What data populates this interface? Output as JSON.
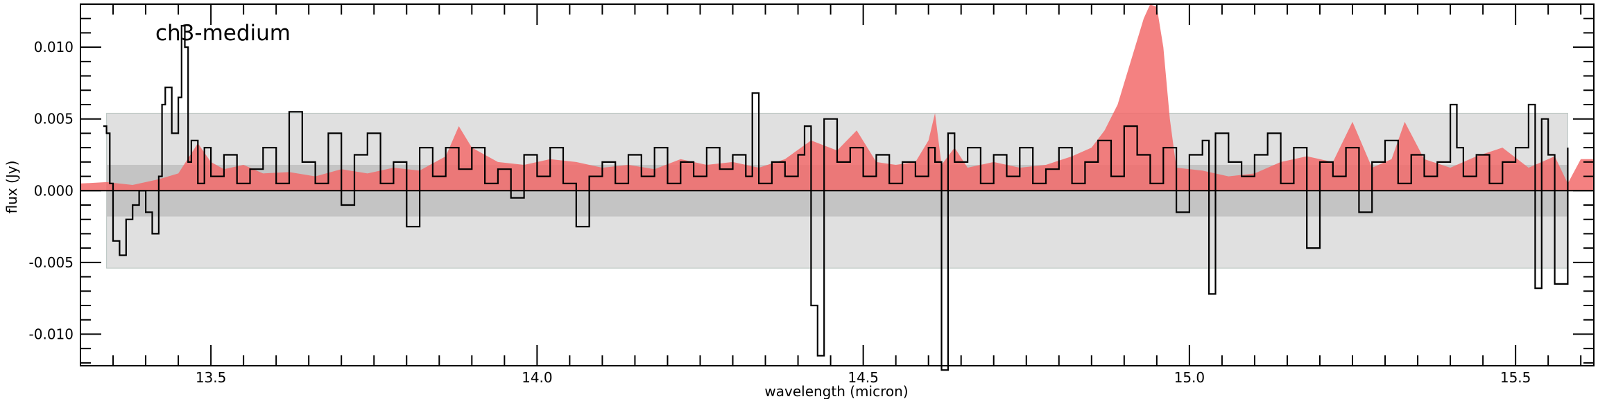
{
  "chart_data": {
    "type": "line",
    "title": "",
    "annotation": "ch3-medium",
    "xlabel": "wavelength (micron)",
    "ylabel": "flux (Jy)",
    "xlim": [
      13.3,
      15.62
    ],
    "ylim": [
      -0.0122,
      0.013
    ],
    "x_ticks": [
      13.5,
      14.0,
      14.5,
      15.0,
      15.5
    ],
    "x_tick_labels": [
      "13.5",
      "14.0",
      "14.5",
      "15.0",
      "15.5"
    ],
    "y_ticks": [
      -0.01,
      -0.005,
      0.0,
      0.005,
      0.01
    ],
    "y_tick_labels": [
      "-0.010",
      "-0.005",
      "0.000",
      "0.005",
      "0.010"
    ],
    "noise_bands": {
      "x_range": [
        13.34,
        15.58
      ],
      "outer_sigma": 0.0054,
      "inner_sigma": 0.0018
    },
    "colors": {
      "band_outer": "#e0e0e0",
      "band_inner": "#c4c4c4",
      "model_fill": "#f26b6b",
      "spectrum": "#000000",
      "zero_line": "#000000"
    },
    "series": [
      {
        "style": "filled-area",
        "x": [
          13.3,
          13.34,
          13.38,
          13.42,
          13.45,
          13.48,
          13.5,
          13.52,
          13.55,
          13.58,
          13.62,
          13.66,
          13.7,
          13.74,
          13.78,
          13.82,
          13.86,
          13.88,
          13.9,
          13.94,
          13.98,
          14.02,
          14.06,
          14.1,
          14.14,
          14.18,
          14.22,
          14.26,
          14.3,
          14.34,
          14.38,
          14.42,
          14.46,
          14.49,
          14.52,
          14.55,
          14.58,
          14.6,
          14.61,
          14.62,
          14.64,
          14.66,
          14.7,
          14.74,
          14.78,
          14.82,
          14.85,
          14.87,
          14.89,
          14.91,
          14.93,
          14.94,
          14.95,
          14.96,
          14.97,
          14.98,
          15.02,
          15.06,
          15.1,
          15.14,
          15.18,
          15.22,
          15.25,
          15.28,
          15.31,
          15.33,
          15.36,
          15.4,
          15.44,
          15.48,
          15.52,
          15.56,
          15.58,
          15.6,
          15.62
        ],
        "y": [
          0.0005,
          0.0006,
          0.0004,
          0.0008,
          0.0012,
          0.0033,
          0.002,
          0.0015,
          0.0018,
          0.0012,
          0.0013,
          0.001,
          0.0015,
          0.0012,
          0.0016,
          0.0014,
          0.0024,
          0.0045,
          0.003,
          0.002,
          0.0018,
          0.0022,
          0.002,
          0.0016,
          0.0018,
          0.0015,
          0.0022,
          0.0018,
          0.002,
          0.0016,
          0.0022,
          0.0035,
          0.0028,
          0.0042,
          0.002,
          0.0018,
          0.002,
          0.0035,
          0.0054,
          0.0018,
          0.003,
          0.0016,
          0.002,
          0.0016,
          0.0018,
          0.0024,
          0.003,
          0.0042,
          0.006,
          0.009,
          0.012,
          0.013,
          0.0128,
          0.01,
          0.005,
          0.0016,
          0.0014,
          0.001,
          0.0012,
          0.002,
          0.0024,
          0.002,
          0.0048,
          0.0016,
          0.0022,
          0.0048,
          0.0022,
          0.0016,
          0.0024,
          0.003,
          0.0016,
          0.0024,
          0.0005,
          0.0022,
          0.0022
        ]
      },
      {
        "style": "step-line",
        "x": [
          13.335,
          13.34,
          13.345,
          13.35,
          13.36,
          13.37,
          13.38,
          13.39,
          13.4,
          13.41,
          13.42,
          13.425,
          13.43,
          13.44,
          13.45,
          13.455,
          13.46,
          13.465,
          13.47,
          13.48,
          13.49,
          13.5,
          13.52,
          13.54,
          13.56,
          13.58,
          13.6,
          13.62,
          13.64,
          13.66,
          13.68,
          13.7,
          13.72,
          13.74,
          13.76,
          13.78,
          13.8,
          13.82,
          13.84,
          13.86,
          13.88,
          13.9,
          13.92,
          13.94,
          13.96,
          13.98,
          14.0,
          14.02,
          14.04,
          14.06,
          14.08,
          14.1,
          14.12,
          14.14,
          14.16,
          14.18,
          14.2,
          14.22,
          14.24,
          14.26,
          14.28,
          14.3,
          14.32,
          14.33,
          14.34,
          14.36,
          14.38,
          14.4,
          14.41,
          14.42,
          14.43,
          14.44,
          14.46,
          14.48,
          14.5,
          14.52,
          14.54,
          14.56,
          14.58,
          14.6,
          14.61,
          14.62,
          14.63,
          14.64,
          14.66,
          14.68,
          14.7,
          14.72,
          14.74,
          14.76,
          14.78,
          14.8,
          14.82,
          14.84,
          14.86,
          14.88,
          14.9,
          14.92,
          14.94,
          14.96,
          14.98,
          15.0,
          15.02,
          15.03,
          15.04,
          15.06,
          15.08,
          15.1,
          15.12,
          15.14,
          15.16,
          15.18,
          15.2,
          15.22,
          15.24,
          15.26,
          15.28,
          15.3,
          15.32,
          15.34,
          15.36,
          15.38,
          15.4,
          15.41,
          15.42,
          15.44,
          15.46,
          15.48,
          15.5,
          15.52,
          15.53,
          15.54,
          15.55,
          15.56,
          15.58
        ],
        "y": [
          0.0045,
          0.004,
          0.0005,
          -0.0035,
          -0.0045,
          -0.002,
          -0.001,
          0.0,
          -0.0015,
          -0.003,
          0.001,
          0.006,
          0.0072,
          0.004,
          0.0065,
          0.0115,
          0.01,
          0.002,
          0.0035,
          0.0005,
          0.003,
          0.001,
          0.0025,
          0.0005,
          0.0015,
          0.003,
          0.0005,
          0.0055,
          0.002,
          0.0005,
          0.004,
          -0.001,
          0.0025,
          0.004,
          0.0005,
          0.002,
          -0.0025,
          0.003,
          0.001,
          0.003,
          0.0015,
          0.003,
          0.0005,
          0.0015,
          -0.0005,
          0.0025,
          0.001,
          0.003,
          0.0005,
          -0.0025,
          0.001,
          0.002,
          0.0005,
          0.0025,
          0.001,
          0.003,
          0.0005,
          0.002,
          0.001,
          0.003,
          0.0015,
          0.0025,
          0.001,
          0.0068,
          0.0005,
          0.002,
          0.001,
          0.0025,
          0.0045,
          -0.008,
          -0.0115,
          0.005,
          0.002,
          0.003,
          0.001,
          0.0025,
          0.0005,
          0.002,
          0.001,
          0.003,
          0.002,
          -0.0125,
          0.004,
          0.002,
          0.003,
          0.0005,
          0.0025,
          0.001,
          0.003,
          0.0005,
          0.0015,
          0.003,
          0.0005,
          0.002,
          0.0035,
          0.001,
          0.0045,
          0.0025,
          0.0005,
          0.003,
          -0.0015,
          0.0025,
          0.0035,
          -0.0072,
          0.004,
          0.002,
          0.001,
          0.0025,
          0.004,
          0.0005,
          0.003,
          -0.004,
          0.002,
          0.001,
          0.003,
          -0.0015,
          0.002,
          0.0035,
          0.0005,
          0.0025,
          0.001,
          0.002,
          0.006,
          0.003,
          0.001,
          0.0025,
          0.0005,
          0.002,
          0.003,
          0.006,
          -0.0068,
          0.005,
          0.0025,
          -0.0065,
          0.003
        ]
      }
    ]
  }
}
